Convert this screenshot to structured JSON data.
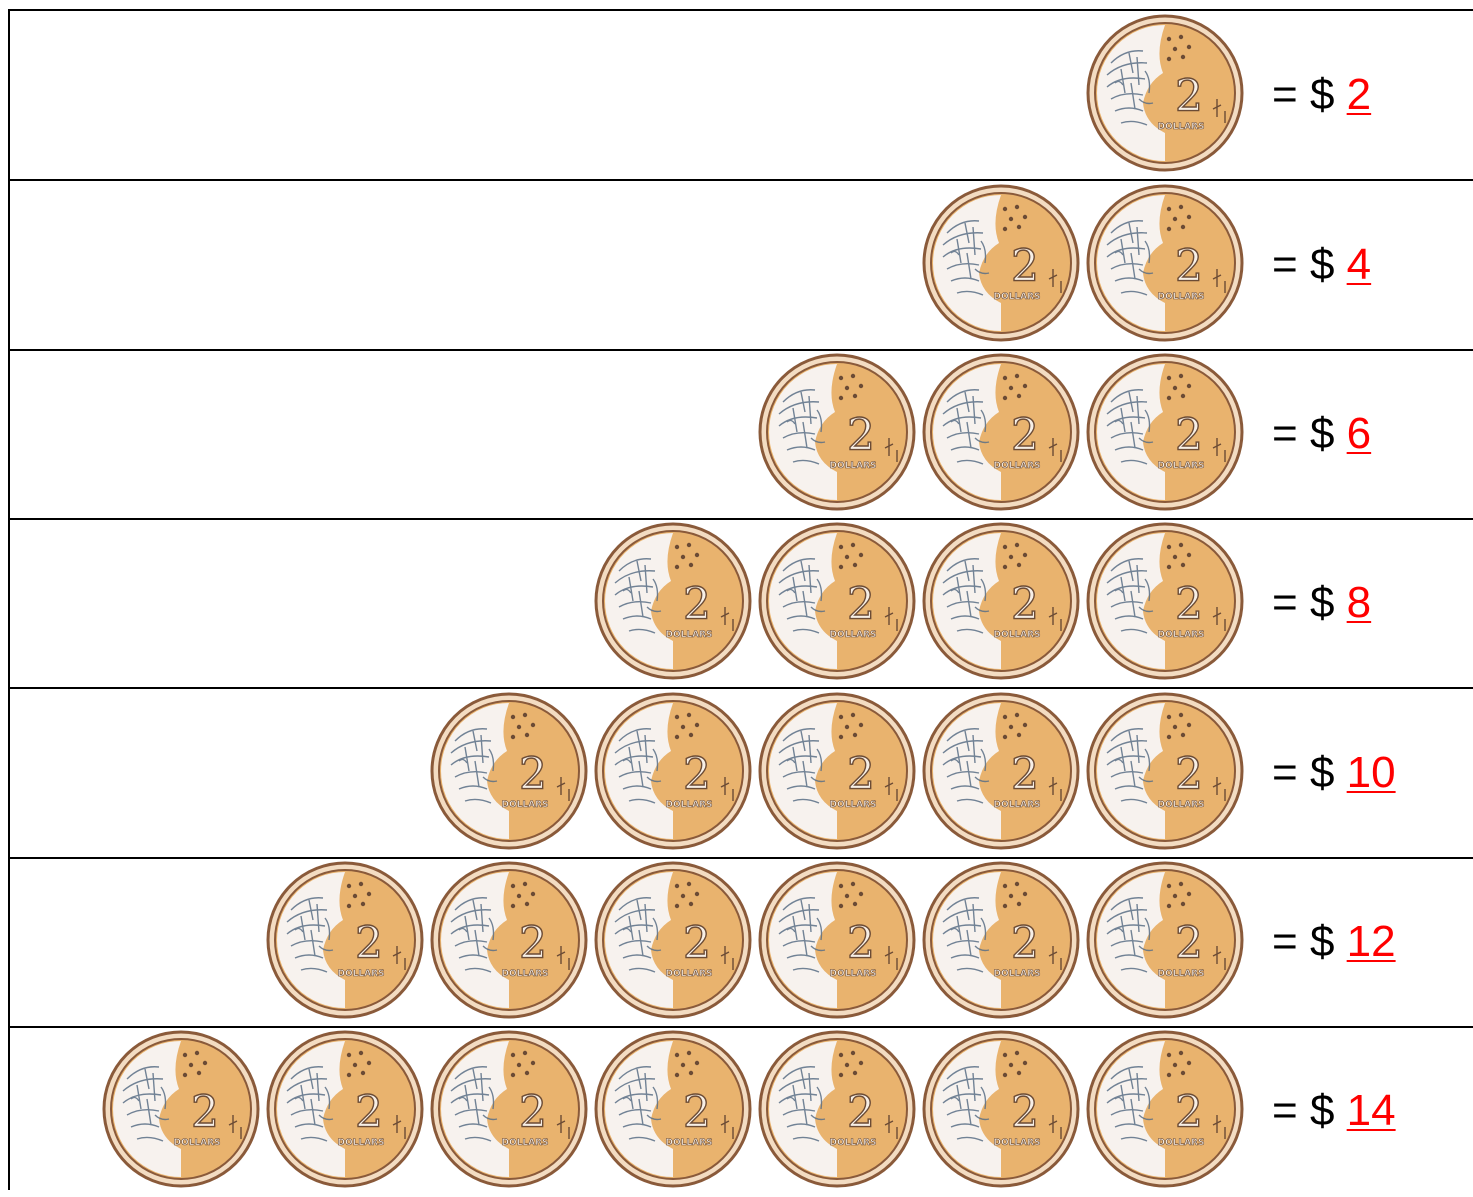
{
  "equals_sign": "=",
  "currency_symbol": "$",
  "coin_face_value": "2",
  "coin_face_text": "DOLLARS",
  "coin_icon": "two-dollar-coin-icon",
  "colors": {
    "answer": "#ff0000",
    "coin_gold": "#e9b36e",
    "coin_rim": "#8a5a3a"
  },
  "rows": [
    {
      "coins": 1,
      "answer": "2"
    },
    {
      "coins": 2,
      "answer": "4"
    },
    {
      "coins": 3,
      "answer": "6"
    },
    {
      "coins": 4,
      "answer": "8"
    },
    {
      "coins": 5,
      "answer": "10"
    },
    {
      "coins": 6,
      "answer": "12"
    },
    {
      "coins": 7,
      "answer": "14"
    }
  ]
}
